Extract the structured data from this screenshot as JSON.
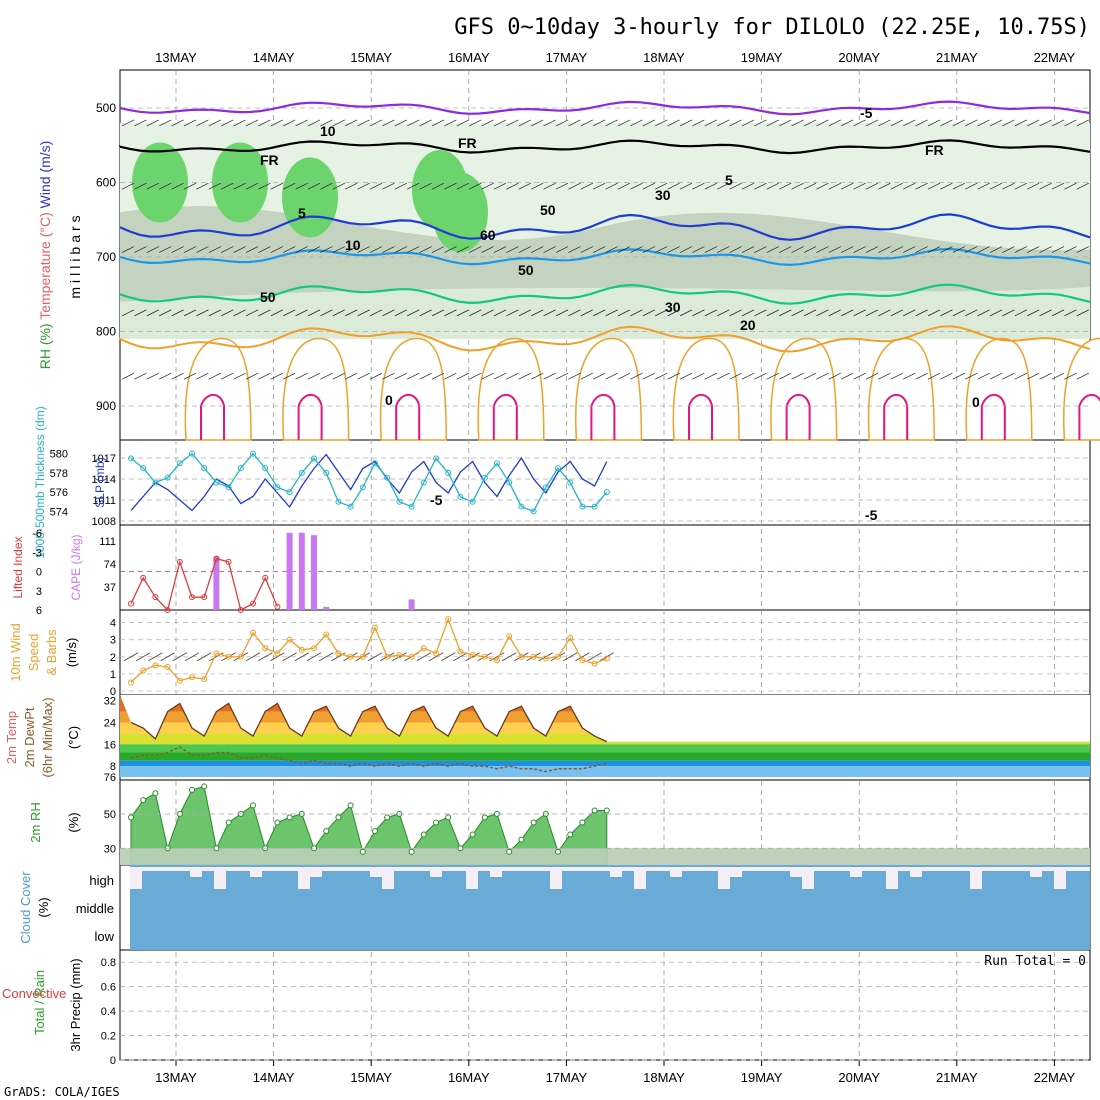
{
  "title": "GFS 0~10day 3-hourly for DILOLO (22.25E, 10.75S)",
  "credit": "GrADS: COLA/IGES",
  "dates": [
    "13MAY",
    "14MAY",
    "15MAY",
    "16MAY",
    "17MAY",
    "18MAY",
    "19MAY",
    "20MAY",
    "21MAY",
    "22MAY"
  ],
  "colors": {
    "purple": "#8a2be2",
    "blue_5": "#1e3cd2",
    "blue_10": "#1e96e6",
    "green_15": "#14c882",
    "orange": "#f0a028",
    "magenta": "#e6147e",
    "slp": "#1e3cd2",
    "thick": "#28b4c8",
    "lifted": "#e03c3c",
    "cape": "#c878f0",
    "wind": "#f0a028",
    "rh_green": "#32c832",
    "cloud": "#6aaad6"
  },
  "panels": {
    "profile": {
      "ylabel_parts": [
        "Wind (m/s)",
        "Temperature (°C)",
        "RH (%)"
      ],
      "y_inner": "millibars",
      "levels": [
        500,
        600,
        700,
        800,
        900
      ],
      "contour_labels": [
        "-5",
        "-5",
        "FR",
        "FR",
        "FR",
        "-5",
        "5",
        "5",
        "10",
        "20",
        "0",
        "10",
        "30",
        "30",
        "50",
        "50",
        "50",
        "60",
        "0"
      ]
    },
    "slp": {
      "ylabel_left": "1000-500mb Thickness (dm)",
      "ylabel_right": "SLP (mb)",
      "left_ticks": [
        "580",
        "578",
        "576",
        "574"
      ],
      "right_ticks": [
        "1017",
        "1014",
        "1011",
        "1008"
      ]
    },
    "cape": {
      "ylabel_left": "Lifted Index",
      "ylabel_right": "CAPE (J/kg)",
      "left_ticks": [
        "-6",
        "-3",
        "0",
        "3",
        "6"
      ],
      "right_ticks": [
        "111",
        "74",
        "37"
      ]
    },
    "wind": {
      "ylabel_parts": [
        "10m Wind",
        "Speed",
        "& Barbs",
        "(m/s)"
      ],
      "ticks": [
        "4",
        "3",
        "2",
        "1",
        "0"
      ]
    },
    "temp": {
      "ylabel_parts": [
        "2m Temp",
        "2m DewPt",
        "(6hr Min/Max)",
        "(°C)"
      ],
      "ticks": [
        "32",
        "24",
        "16",
        "8",
        "76"
      ]
    },
    "rh": {
      "ylabel_parts": [
        "2m RH",
        "(%)"
      ],
      "ticks": [
        "50",
        "30"
      ]
    },
    "cloud": {
      "ylabel_parts": [
        "Cloud Cover",
        "(%)"
      ],
      "level_labels": [
        "high",
        "middle",
        "low"
      ]
    },
    "precip": {
      "ylabel_parts": [
        "Total / Rain",
        "Convective",
        "3hr Precip (mm)"
      ],
      "ticks": [
        "0.8",
        "0.6",
        "0.4",
        "0.2",
        "0"
      ],
      "run_total": "Run Total = 0"
    }
  },
  "chart_data": [
    {
      "type": "line",
      "title": "1000-500mb Thickness (dm) / SLP (mb)",
      "x": [
        "12 18Z",
        "13 00Z",
        "13 06Z",
        "13 12Z",
        "13 18Z",
        "14 00Z",
        "14 06Z",
        "14 12Z",
        "14 18Z",
        "15 00Z",
        "15 06Z",
        "15 12Z",
        "15 18Z",
        "16 00Z",
        "16 06Z",
        "16 12Z",
        "16 18Z",
        "17 00Z",
        "17 06Z",
        "17 12Z",
        "17 18Z",
        "18 00Z",
        "18 06Z",
        "18 12Z",
        "18 18Z",
        "19 00Z",
        "19 06Z",
        "19 12Z",
        "19 18Z",
        "20 00Z",
        "20 06Z",
        "20 12Z",
        "20 18Z",
        "21 00Z",
        "21 06Z",
        "21 12Z",
        "21 18Z",
        "22 00Z",
        "22 06Z",
        "22 12Z"
      ],
      "series": [
        {
          "name": "SLP (mb)",
          "values": [
            1009.5,
            1011.5,
            1013.5,
            1012.5,
            1011,
            1009.5,
            1011.5,
            1014,
            1013,
            1010.5,
            1011.5,
            1014,
            1012,
            1010,
            1013,
            1015.5,
            1017.5,
            1015,
            1012.5,
            1015.5,
            1016.5,
            1014,
            1012,
            1015,
            1016.5,
            1013.5,
            1012,
            1015,
            1016.5,
            1013.5,
            1011.5,
            1014.5,
            1017,
            1014,
            1012,
            1015,
            1016.5,
            1014,
            1013,
            1016.5
          ]
        },
        {
          "name": "1000-500mb Thickness (dm)",
          "values": [
            579.5,
            578.5,
            577,
            577.5,
            579,
            580,
            578.5,
            577,
            576.5,
            578.5,
            580,
            578.5,
            576.5,
            576,
            578,
            579.5,
            578,
            575,
            574.5,
            576.5,
            579,
            577.5,
            575,
            574.5,
            577,
            579.5,
            578,
            575.5,
            575,
            577.5,
            579,
            577,
            574.5,
            574,
            576.5,
            578.5,
            577,
            574.5,
            574.5,
            576
          ]
        }
      ]
    },
    {
      "type": "bar",
      "title": "CAPE (J/kg)",
      "x": [
        "13 15Z",
        "14 09Z",
        "14 12Z",
        "14 15Z",
        "14 18Z",
        "15 15Z"
      ],
      "values": [
        86,
        124,
        124,
        120,
        5,
        17
      ],
      "ylim": [
        0,
        130
      ]
    },
    {
      "type": "line",
      "title": "Lifted Index",
      "x": [
        "12 18Z",
        "13 00Z",
        "13 06Z",
        "13 12Z",
        "13 18Z",
        "14 00Z",
        "14 06Z",
        "14 12Z",
        "14 18Z",
        "15 00Z",
        "15 06Z",
        "15 12Z",
        "15 18Z"
      ],
      "values": [
        5,
        1,
        4,
        6,
        -1.5,
        4,
        4,
        -2,
        -1.5,
        6,
        5,
        1,
        5.5
      ],
      "ylim": [
        6,
        -6
      ]
    },
    {
      "type": "line",
      "title": "10m Wind Speed (m/s)",
      "x": [
        "12 18Z",
        "13 00Z",
        "13 06Z",
        "13 12Z",
        "13 18Z",
        "14 00Z",
        "14 06Z",
        "14 12Z",
        "14 18Z",
        "15 00Z",
        "15 06Z",
        "15 12Z",
        "15 18Z",
        "16 00Z",
        "16 06Z",
        "16 12Z",
        "16 18Z",
        "17 00Z",
        "17 06Z",
        "17 12Z",
        "17 18Z",
        "18 00Z",
        "18 06Z",
        "18 12Z",
        "18 18Z",
        "19 00Z",
        "19 06Z",
        "19 12Z",
        "19 18Z",
        "20 00Z",
        "20 06Z",
        "20 12Z",
        "20 18Z",
        "21 00Z",
        "21 06Z",
        "21 12Z",
        "21 18Z",
        "22 00Z",
        "22 06Z",
        "22 12Z"
      ],
      "values": [
        0.5,
        1.2,
        1.5,
        1.4,
        0.6,
        0.8,
        0.7,
        2.2,
        2.0,
        2.0,
        3.4,
        2.5,
        2.2,
        3.0,
        2.4,
        2.5,
        3.3,
        2.2,
        2.0,
        2.0,
        3.7,
        2.0,
        2.1,
        2.0,
        2.5,
        2.2,
        4.2,
        2.3,
        2.1,
        2.0,
        1.8,
        3.2,
        2.0,
        2.0,
        1.9,
        2.0,
        3.1,
        1.8,
        1.6,
        1.9
      ],
      "ylim": [
        0,
        4.5
      ]
    },
    {
      "type": "area",
      "title": "2m Temp / 2m DewPt (°C)",
      "x": [
        "12 18Z",
        "13 00Z",
        "13 06Z",
        "13 12Z",
        "13 18Z",
        "14 00Z",
        "14 06Z",
        "14 12Z",
        "14 18Z",
        "15 00Z",
        "15 06Z",
        "15 12Z",
        "15 18Z",
        "16 00Z",
        "16 06Z",
        "16 12Z",
        "16 18Z",
        "17 00Z",
        "17 06Z",
        "17 12Z",
        "17 18Z",
        "18 00Z",
        "18 06Z",
        "18 12Z",
        "18 18Z",
        "19 00Z",
        "19 06Z",
        "19 12Z",
        "19 18Z",
        "20 00Z",
        "20 06Z",
        "20 12Z",
        "20 18Z",
        "21 00Z",
        "21 06Z",
        "21 12Z",
        "21 18Z",
        "22 00Z",
        "22 06Z",
        "22 12Z"
      ],
      "series": [
        {
          "name": "2m Temp",
          "values": [
            24,
            22,
            18,
            28,
            31,
            22,
            19,
            28,
            31,
            22,
            19,
            28,
            31,
            22,
            19,
            28,
            30,
            22,
            19,
            28,
            30,
            22,
            19,
            28,
            30,
            22,
            19,
            28,
            30,
            22,
            19,
            28,
            30,
            22,
            19,
            28,
            30,
            22,
            19,
            17
          ]
        },
        {
          "name": "2m DewPt",
          "values": [
            11,
            12,
            12,
            13,
            15,
            12,
            12,
            13,
            13,
            11,
            11,
            12,
            11,
            10,
            9,
            10,
            9,
            9,
            8,
            9,
            8,
            9,
            8,
            9,
            8,
            9,
            8,
            9,
            8,
            8,
            7,
            8,
            7,
            7,
            6,
            7,
            7,
            7,
            8,
            9
          ]
        }
      ],
      "ylim": [
        6,
        33
      ]
    },
    {
      "type": "area",
      "title": "2m RH (%)",
      "x": [
        "12 18Z",
        "13 00Z",
        "13 06Z",
        "13 12Z",
        "13 18Z",
        "14 00Z",
        "14 06Z",
        "14 12Z",
        "14 18Z",
        "15 00Z",
        "15 06Z",
        "15 12Z",
        "15 18Z",
        "16 00Z",
        "16 06Z",
        "16 12Z",
        "16 18Z",
        "17 00Z",
        "17 06Z",
        "17 12Z",
        "17 18Z",
        "18 00Z",
        "18 06Z",
        "18 12Z",
        "18 18Z",
        "19 00Z",
        "19 06Z",
        "19 12Z",
        "19 18Z",
        "20 00Z",
        "20 06Z",
        "20 12Z",
        "20 18Z",
        "21 00Z",
        "21 06Z",
        "21 12Z",
        "21 18Z",
        "22 00Z",
        "22 06Z",
        "22 12Z"
      ],
      "values": [
        48,
        58,
        62,
        30,
        50,
        64,
        66,
        30,
        45,
        50,
        55,
        30,
        45,
        48,
        50,
        30,
        40,
        48,
        55,
        28,
        40,
        48,
        50,
        28,
        38,
        45,
        48,
        30,
        38,
        48,
        50,
        28,
        35,
        45,
        50,
        28,
        38,
        45,
        52,
        52
      ],
      "ylim": [
        22,
        68
      ]
    },
    {
      "type": "table",
      "title": "3hr Precip (mm)",
      "values": [
        0
      ],
      "ylim": [
        0,
        0.9
      ]
    }
  ]
}
